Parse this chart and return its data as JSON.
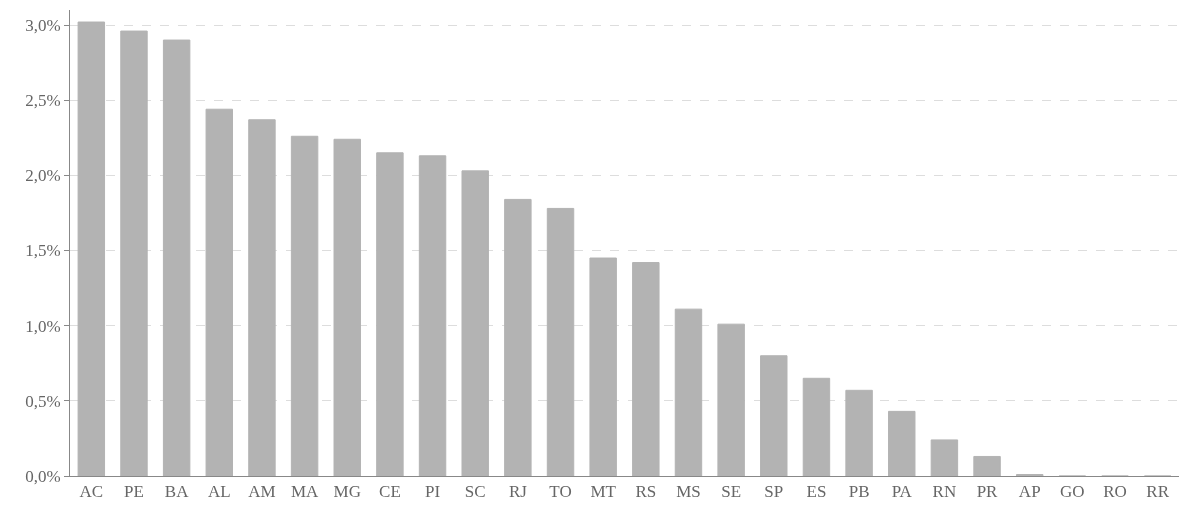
{
  "chart_data": {
    "type": "bar",
    "categories": [
      "AC",
      "PE",
      "BA",
      "AL",
      "AM",
      "MA",
      "MG",
      "CE",
      "PI",
      "SC",
      "RJ",
      "TO",
      "MT",
      "RS",
      "MS",
      "SE",
      "SP",
      "ES",
      "PB",
      "PA",
      "RN",
      "PR",
      "AP",
      "GO",
      "RO",
      "RR"
    ],
    "values": [
      3.02,
      2.96,
      2.9,
      2.44,
      2.37,
      2.26,
      2.24,
      2.15,
      2.13,
      2.03,
      1.84,
      1.78,
      1.45,
      1.42,
      1.11,
      1.01,
      0.8,
      0.65,
      0.57,
      0.43,
      0.24,
      0.13,
      0.01,
      0,
      0,
      0
    ],
    "color": "#b3b3b3",
    "ylim": [
      0,
      3.1
    ],
    "yticks": [
      {
        "value": 0,
        "label": "0,0%"
      },
      {
        "value": 0.5,
        "label": "0,5%"
      },
      {
        "value": 1,
        "label": "1,0%"
      },
      {
        "value": 1.5,
        "label": "1,5%"
      },
      {
        "value": 2,
        "label": "2,0%"
      },
      {
        "value": 2.5,
        "label": "2,5%"
      },
      {
        "value": 3,
        "label": "3,0%"
      }
    ],
    "grid": "y",
    "legend": false
  }
}
